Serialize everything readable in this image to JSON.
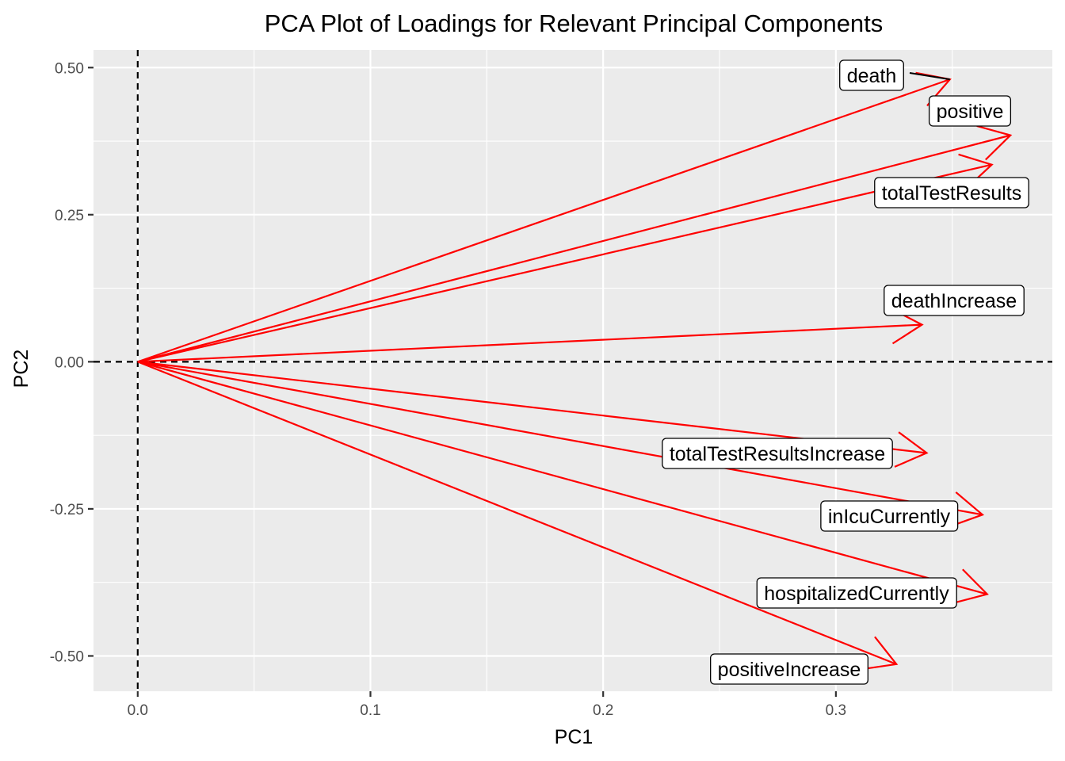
{
  "chart_data": {
    "type": "scatter",
    "subtype": "biplot-loadings",
    "title": "PCA Plot of Loadings for Relevant Principal Components",
    "xlabel": "PC1",
    "ylabel": "PC2",
    "xlim": [
      -0.019,
      0.393
    ],
    "ylim": [
      -0.56,
      0.53
    ],
    "x_ticks": [
      0.0,
      0.1,
      0.2,
      0.3
    ],
    "x_tick_labels": [
      "0.0",
      "0.1",
      "0.2",
      "0.3"
    ],
    "y_ticks": [
      -0.5,
      -0.25,
      0.0,
      0.25,
      0.5
    ],
    "y_tick_labels": [
      "-0.50",
      "-0.25",
      "0.00",
      "0.25",
      "0.50"
    ],
    "grid": true,
    "legend": "none",
    "reference_lines": {
      "x": 0,
      "y": 0,
      "style": "dashed"
    },
    "arrow_color": "#ff0000",
    "panel_background": "#ebebeb",
    "vectors": [
      {
        "name": "death",
        "x": 0.349,
        "y": 0.48
      },
      {
        "name": "positive",
        "x": 0.375,
        "y": 0.385
      },
      {
        "name": "totalTestResults",
        "x": 0.367,
        "y": 0.335
      },
      {
        "name": "deathIncrease",
        "x": 0.337,
        "y": 0.063
      },
      {
        "name": "totalTestResultsIncrease",
        "x": 0.339,
        "y": -0.155
      },
      {
        "name": "inIcuCurrently",
        "x": 0.363,
        "y": -0.26
      },
      {
        "name": "hospitalizedCurrently",
        "x": 0.365,
        "y": -0.395
      },
      {
        "name": "positiveIncrease",
        "x": 0.326,
        "y": -0.514
      }
    ]
  }
}
